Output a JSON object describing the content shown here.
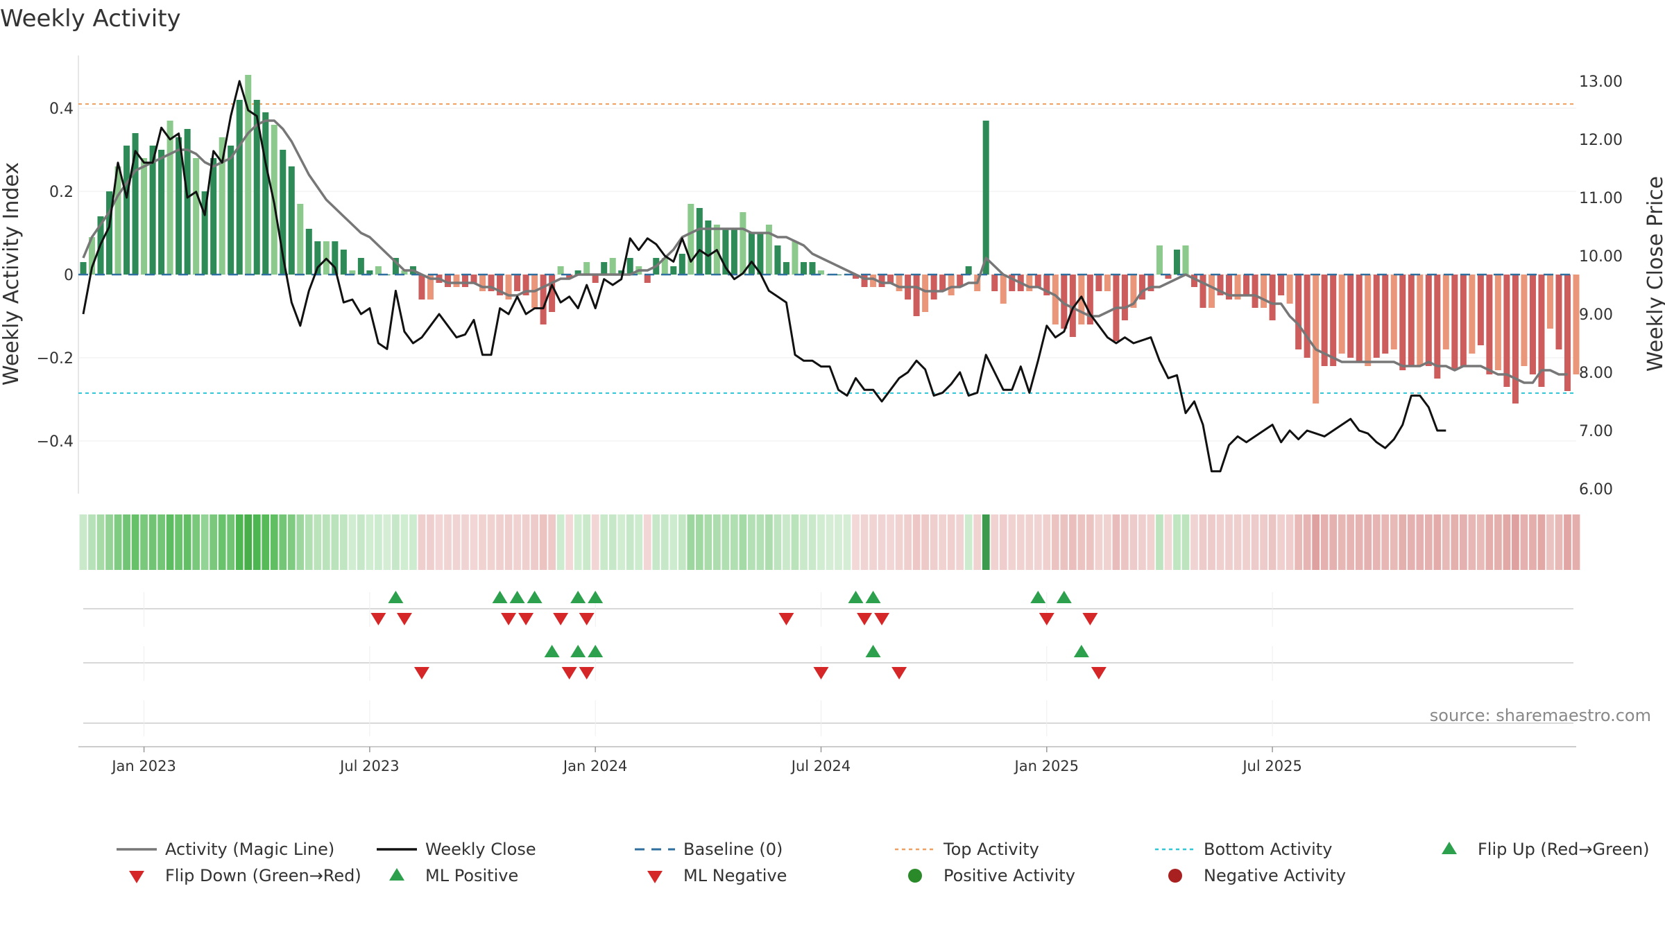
{
  "chart_data": {
    "type": "bar",
    "title": "Weekly Activity",
    "ylabel": "Weekly Activity Index",
    "y2label": "Weekly Close Price",
    "ylim": [
      -0.52,
      0.52
    ],
    "y2lim": [
      6.0,
      13.5
    ],
    "yticks": [
      "0.4",
      "0.2",
      "0",
      "−0.2",
      "−0.4"
    ],
    "yticks_values": [
      0.4,
      0.2,
      0,
      -0.2,
      -0.4
    ],
    "y2ticks": [
      "13.00",
      "12.00",
      "11.00",
      "10.00",
      "9.00",
      "8.00",
      "7.00",
      "6.00"
    ],
    "y2ticks_values": [
      13,
      12,
      11,
      10,
      9,
      8,
      7,
      6
    ],
    "xticks": [
      "Jan 2023",
      "Jul 2023",
      "Jan 2024",
      "Jul 2024",
      "Jan 2025",
      "Jul 2025"
    ],
    "xticks_week": [
      7,
      33,
      59,
      85,
      111,
      137
    ],
    "top_activity": 0.41,
    "bottom_activity": -0.285,
    "activity": [
      0.03,
      0.09,
      0.14,
      0.2,
      0.26,
      0.31,
      0.34,
      0.28,
      0.31,
      0.3,
      0.37,
      0.33,
      0.35,
      0.28,
      0.2,
      0.28,
      0.33,
      0.31,
      0.42,
      0.48,
      0.42,
      0.39,
      0.36,
      0.3,
      0.26,
      0.17,
      0.11,
      0.08,
      0.08,
      0.08,
      0.06,
      0.01,
      0.04,
      0.01,
      0.02,
      0.0,
      0.04,
      0.01,
      0.02,
      -0.06,
      -0.06,
      -0.02,
      -0.03,
      -0.03,
      -0.03,
      -0.02,
      -0.04,
      -0.04,
      -0.05,
      -0.06,
      -0.04,
      -0.05,
      -0.08,
      -0.12,
      -0.09,
      0.02,
      -0.01,
      0.01,
      0.03,
      -0.02,
      0.03,
      0.04,
      0.01,
      0.04,
      0.02,
      -0.02,
      0.04,
      0.04,
      0.02,
      0.05,
      0.17,
      0.16,
      0.13,
      0.12,
      0.11,
      0.11,
      0.15,
      0.1,
      0.1,
      0.12,
      0.07,
      0.03,
      0.08,
      0.03,
      0.03,
      0.01,
      0.0,
      0.0,
      0.0,
      -0.01,
      -0.03,
      -0.03,
      -0.03,
      -0.02,
      -0.04,
      -0.06,
      -0.1,
      -0.09,
      -0.06,
      -0.04,
      -0.05,
      -0.03,
      0.02,
      -0.04,
      0.37,
      -0.04,
      -0.07,
      -0.04,
      -0.04,
      -0.04,
      -0.03,
      -0.05,
      -0.12,
      -0.13,
      -0.15,
      -0.12,
      -0.12,
      -0.04,
      -0.04,
      -0.16,
      -0.11,
      -0.08,
      -0.06,
      -0.04,
      0.07,
      -0.01,
      0.06,
      0.07,
      -0.03,
      -0.08,
      -0.08,
      -0.05,
      -0.06,
      -0.06,
      -0.05,
      -0.08,
      -0.08,
      -0.11,
      -0.05,
      -0.07,
      -0.18,
      -0.2,
      -0.31,
      -0.22,
      -0.22,
      -0.19,
      -0.2,
      -0.21,
      -0.22,
      -0.2,
      -0.19,
      -0.18,
      -0.23,
      -0.22,
      -0.22,
      -0.22,
      -0.25,
      -0.18,
      -0.23,
      -0.22,
      -0.19,
      -0.17,
      -0.24,
      -0.23,
      -0.27,
      -0.31,
      -0.22,
      -0.24,
      -0.27,
      -0.13,
      -0.18,
      -0.28,
      -0.24
    ],
    "close": [
      9.0,
      9.8,
      10.2,
      10.5,
      11.6,
      11.0,
      11.8,
      11.6,
      11.6,
      12.2,
      12.0,
      12.1,
      11.0,
      11.1,
      10.7,
      11.8,
      11.6,
      12.4,
      13.0,
      12.5,
      12.4,
      11.6,
      10.9,
      10.0,
      9.2,
      8.8,
      9.4,
      9.8,
      9.95,
      9.8,
      9.2,
      9.25,
      9.0,
      9.1,
      8.5,
      8.4,
      9.4,
      8.7,
      8.5,
      8.6,
      8.8,
      9.0,
      8.8,
      8.6,
      8.65,
      8.9,
      8.3,
      8.3,
      9.1,
      9.0,
      9.3,
      9.0,
      9.1,
      9.1,
      9.5,
      9.2,
      9.3,
      9.1,
      9.5,
      9.1,
      9.6,
      9.5,
      9.6,
      10.3,
      10.1,
      10.3,
      10.2,
      10.0,
      9.9,
      10.3,
      9.9,
      10.1,
      10.0,
      10.1,
      9.8,
      9.6,
      9.7,
      9.9,
      9.7,
      9.4,
      9.3,
      9.2,
      8.3,
      8.2,
      8.2,
      8.1,
      8.1,
      7.7,
      7.6,
      7.9,
      7.7,
      7.7,
      7.5,
      7.7,
      7.9,
      8.0,
      8.2,
      8.05,
      7.6,
      7.65,
      7.8,
      8.0,
      7.6,
      7.65,
      8.3,
      8.0,
      7.7,
      7.7,
      8.1,
      7.65,
      8.2,
      8.8,
      8.6,
      8.7,
      9.1,
      9.3,
      9.0,
      8.8,
      8.6,
      8.5,
      8.6,
      8.5,
      8.55,
      8.6,
      8.2,
      7.9,
      7.95,
      7.3,
      7.5,
      7.1,
      6.3,
      6.3,
      6.75,
      6.9,
      6.8,
      6.9,
      7.0,
      7.1,
      6.8,
      7.0,
      6.85,
      7.0,
      6.95,
      6.9,
      7.0,
      7.1,
      7.2,
      7.0,
      6.95,
      6.8,
      6.7,
      6.85,
      7.1,
      7.6,
      7.6,
      7.4,
      7.0,
      7.0
    ],
    "magic": [
      0.04,
      0.09,
      0.12,
      0.15,
      0.19,
      0.22,
      0.25,
      0.26,
      0.27,
      0.28,
      0.29,
      0.3,
      0.3,
      0.29,
      0.27,
      0.26,
      0.27,
      0.28,
      0.31,
      0.34,
      0.36,
      0.37,
      0.37,
      0.35,
      0.32,
      0.28,
      0.24,
      0.21,
      0.18,
      0.16,
      0.14,
      0.12,
      0.1,
      0.09,
      0.07,
      0.05,
      0.03,
      0.01,
      0.01,
      0.0,
      -0.01,
      -0.01,
      -0.02,
      -0.02,
      -0.02,
      -0.02,
      -0.03,
      -0.03,
      -0.04,
      -0.05,
      -0.05,
      -0.04,
      -0.04,
      -0.03,
      -0.02,
      -0.01,
      -0.01,
      0.0,
      0.0,
      0.0,
      0.0,
      0.0,
      0.0,
      0.0,
      0.01,
      0.01,
      0.02,
      0.04,
      0.06,
      0.09,
      0.1,
      0.11,
      0.11,
      0.11,
      0.11,
      0.11,
      0.11,
      0.1,
      0.1,
      0.1,
      0.09,
      0.09,
      0.08,
      0.07,
      0.05,
      0.04,
      0.03,
      0.02,
      0.01,
      0.0,
      -0.01,
      -0.01,
      -0.02,
      -0.02,
      -0.03,
      -0.03,
      -0.03,
      -0.04,
      -0.04,
      -0.04,
      -0.03,
      -0.03,
      -0.02,
      -0.02,
      0.04,
      0.02,
      0.0,
      -0.01,
      -0.02,
      -0.03,
      -0.03,
      -0.04,
      -0.05,
      -0.07,
      -0.08,
      -0.09,
      -0.1,
      -0.1,
      -0.09,
      -0.08,
      -0.08,
      -0.07,
      -0.04,
      -0.03,
      -0.03,
      -0.02,
      -0.01,
      0.0,
      -0.01,
      -0.02,
      -0.03,
      -0.04,
      -0.05,
      -0.05,
      -0.05,
      -0.05,
      -0.06,
      -0.07,
      -0.07,
      -0.1,
      -0.12,
      -0.15,
      -0.18,
      -0.19,
      -0.2,
      -0.21,
      -0.21,
      -0.21,
      -0.21,
      -0.21,
      -0.21,
      -0.21,
      -0.22,
      -0.22,
      -0.22,
      -0.21,
      -0.22,
      -0.22,
      -0.23,
      -0.22,
      -0.22,
      -0.22,
      -0.23,
      -0.24,
      -0.24,
      -0.25,
      -0.26,
      -0.26,
      -0.23,
      -0.23,
      -0.24,
      -0.24
    ],
    "flip_up": [
      36,
      48,
      50,
      52,
      57,
      59,
      89,
      91,
      110,
      113
    ],
    "flip_down": [
      34,
      37,
      49,
      51,
      55,
      58,
      81,
      90,
      92,
      111,
      116
    ],
    "ml_positive": [
      54,
      57,
      59,
      91,
      115
    ],
    "ml_negative": [
      39,
      56,
      58,
      85,
      94,
      117
    ],
    "legend": [
      {
        "label": "Activity (Magic Line)",
        "marker": "line",
        "color": "#777777"
      },
      {
        "label": "Weekly Close",
        "marker": "line",
        "color": "#111111"
      },
      {
        "label": "Baseline (0)",
        "marker": "dash",
        "color": "#2f6f9f"
      },
      {
        "label": "Top Activity",
        "marker": "dot-line",
        "color": "#f0a060"
      },
      {
        "label": "Bottom Activity",
        "marker": "dot-line",
        "color": "#30c8d8"
      },
      {
        "label": "Flip Up (Red→Green)",
        "marker": "triangle-up",
        "color": "#2ca04c"
      },
      {
        "label": "Flip Down (Green→Red)",
        "marker": "triangle-down",
        "color": "#d62728"
      },
      {
        "label": "ML Positive",
        "marker": "triangle-up",
        "color": "#2ca04c"
      },
      {
        "label": "ML Negative",
        "marker": "triangle-down",
        "color": "#d62728"
      },
      {
        "label": "Positive Activity",
        "marker": "circle",
        "color": "#2a8a2a"
      },
      {
        "label": "Negative Activity",
        "marker": "circle",
        "color": "#a82020"
      }
    ],
    "source": "source: sharemaestro.com"
  },
  "colors": {
    "pos_dark": "#2e8b57",
    "pos_light": "#8cc98c",
    "neg_dark": "#cd5c5c",
    "neg_light": "#e9967a"
  }
}
